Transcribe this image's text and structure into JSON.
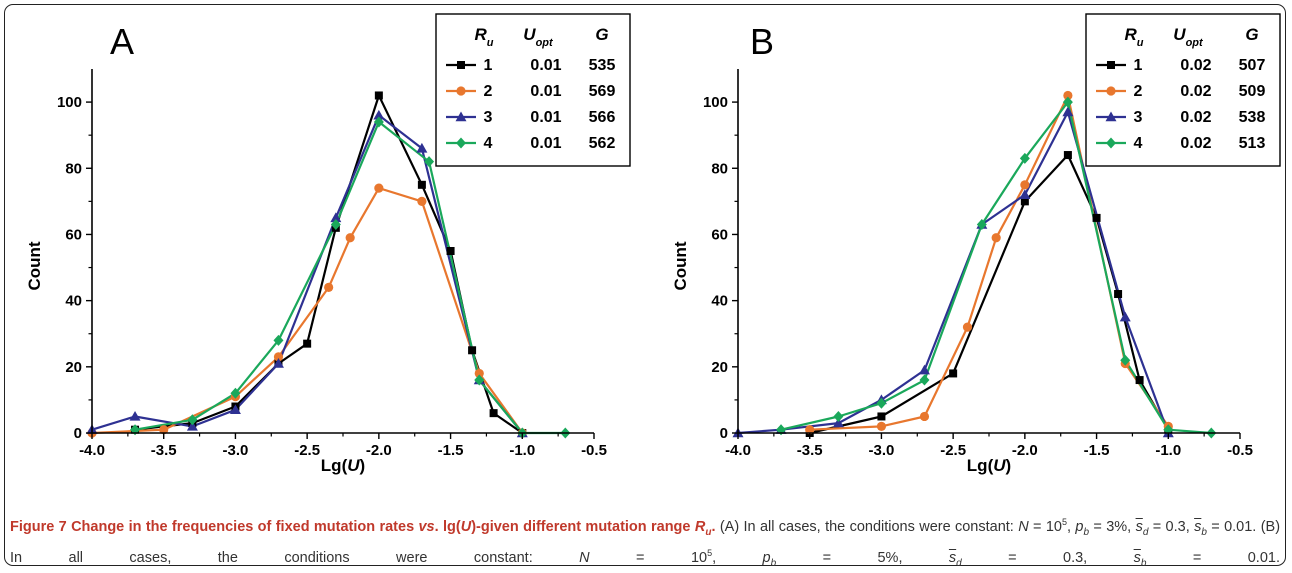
{
  "chart_data": [
    {
      "type": "line",
      "panel_label": "A",
      "xlabel": "Lg(U)",
      "ylabel": "Count",
      "xlim": [
        -4.0,
        -0.5
      ],
      "ylim": [
        0,
        110
      ],
      "xticks": [
        -4.0,
        -3.5,
        -3.0,
        -2.5,
        -2.0,
        -1.5,
        -1.0,
        -0.5
      ],
      "xtick_labels": [
        "-4.0",
        "-3.5",
        "-3.0",
        "-2.5",
        "-2.0",
        "-1.5",
        "-1.0",
        "-0.5"
      ],
      "yticks": [
        0,
        20,
        40,
        60,
        80,
        100
      ],
      "yticks_minor": [
        10,
        30,
        50,
        70,
        90
      ],
      "legend_headers": [
        "R_u",
        "U_opt",
        "G"
      ],
      "legend_placement": "top-right",
      "series": [
        {
          "name": "1",
          "u_opt": "0.01",
          "g": "535",
          "color": "#000000",
          "marker": "square",
          "x": [
            -3.7,
            -3.3,
            -3.0,
            -2.7,
            -2.5,
            -2.3,
            -2.0,
            -1.7,
            -1.5,
            -1.35,
            -1.2,
            -1.0
          ],
          "y": [
            1,
            3,
            8,
            21,
            27,
            62,
            102,
            75,
            55,
            25,
            6,
            0
          ]
        },
        {
          "name": "2",
          "u_opt": "0.01",
          "g": "569",
          "color": "#e8772e",
          "marker": "circle",
          "x": [
            -4.0,
            -3.5,
            -3.0,
            -2.7,
            -2.35,
            -2.2,
            -2.0,
            -1.7,
            -1.3,
            -1.0
          ],
          "y": [
            0,
            1,
            11,
            23,
            44,
            59,
            74,
            70,
            18,
            0
          ]
        },
        {
          "name": "3",
          "u_opt": "0.01",
          "g": "566",
          "color": "#2e3192",
          "marker": "triangle",
          "x": [
            -4.0,
            -3.7,
            -3.3,
            -3.0,
            -2.7,
            -2.3,
            -2.0,
            -1.7,
            -1.3,
            -1.0
          ],
          "y": [
            1,
            5,
            2,
            7,
            21,
            65,
            96,
            86,
            16,
            0
          ]
        },
        {
          "name": "4",
          "u_opt": "0.01",
          "g": "562",
          "color": "#1aa85b",
          "marker": "diamond",
          "x": [
            -3.7,
            -3.3,
            -3.0,
            -2.7,
            -2.3,
            -2.0,
            -1.65,
            -1.3,
            -1.0,
            -0.7
          ],
          "y": [
            1,
            4,
            12,
            28,
            63,
            94,
            82,
            16,
            0,
            0
          ]
        }
      ]
    },
    {
      "type": "line",
      "panel_label": "B",
      "xlabel": "Lg(U)",
      "ylabel": "Count",
      "xlim": [
        -4.0,
        -0.5
      ],
      "ylim": [
        0,
        110
      ],
      "xticks": [
        -4.0,
        -3.5,
        -3.0,
        -2.5,
        -2.0,
        -1.5,
        -1.0,
        -0.5
      ],
      "xtick_labels": [
        "-4.0",
        "-3.5",
        "-3.0",
        "-2.5",
        "-2.0",
        "-1.5",
        "-1.0",
        "-0.5"
      ],
      "yticks": [
        0,
        20,
        40,
        60,
        80,
        100
      ],
      "yticks_minor": [
        10,
        30,
        50,
        70,
        90
      ],
      "legend_headers": [
        "R_u",
        "U_opt",
        "G"
      ],
      "legend_placement": "top-right",
      "series": [
        {
          "name": "1",
          "u_opt": "0.02",
          "g": "507",
          "color": "#000000",
          "marker": "square",
          "x": [
            -3.5,
            -3.0,
            -2.5,
            -2.0,
            -1.7,
            -1.5,
            -1.35,
            -1.2,
            -1.0
          ],
          "y": [
            0,
            5,
            18,
            70,
            84,
            65,
            42,
            16,
            1
          ]
        },
        {
          "name": "2",
          "u_opt": "0.02",
          "g": "509",
          "color": "#e8772e",
          "marker": "circle",
          "x": [
            -3.5,
            -3.0,
            -2.7,
            -2.4,
            -2.2,
            -2.0,
            -1.7,
            -1.3,
            -1.0
          ],
          "y": [
            1,
            2,
            5,
            32,
            59,
            75,
            102,
            21,
            2
          ]
        },
        {
          "name": "3",
          "u_opt": "0.02",
          "g": "538",
          "color": "#2e3192",
          "marker": "triangle",
          "x": [
            -4.0,
            -3.7,
            -3.3,
            -3.0,
            -2.7,
            -2.3,
            -2.0,
            -1.7,
            -1.3,
            -1.0
          ],
          "y": [
            0,
            1,
            3,
            10,
            19,
            63,
            72,
            97,
            35,
            0
          ]
        },
        {
          "name": "4",
          "u_opt": "0.02",
          "g": "513",
          "color": "#1aa85b",
          "marker": "diamond",
          "x": [
            -3.7,
            -3.3,
            -3.0,
            -2.7,
            -2.3,
            -2.0,
            -1.7,
            -1.3,
            -1.0,
            -0.7
          ],
          "y": [
            1,
            5,
            9,
            16,
            63,
            83,
            100,
            22,
            1,
            0
          ]
        }
      ]
    }
  ],
  "caption": {
    "lead": "Figure 7 Change in the frequencies of fixed mutation rates vs. lg(U)-given different mutation range Ru.",
    "part_a": "(A) In all cases, the conditions were constant: N = 10^5, p_b = 3%, s̄_d = 0.3, s̄_b = 0.01.",
    "part_b": "(B) In all cases, the conditions were constant: N = 10^5, p_b = 5%, s̄_d = 0.3, s̄_b = 0.01."
  }
}
